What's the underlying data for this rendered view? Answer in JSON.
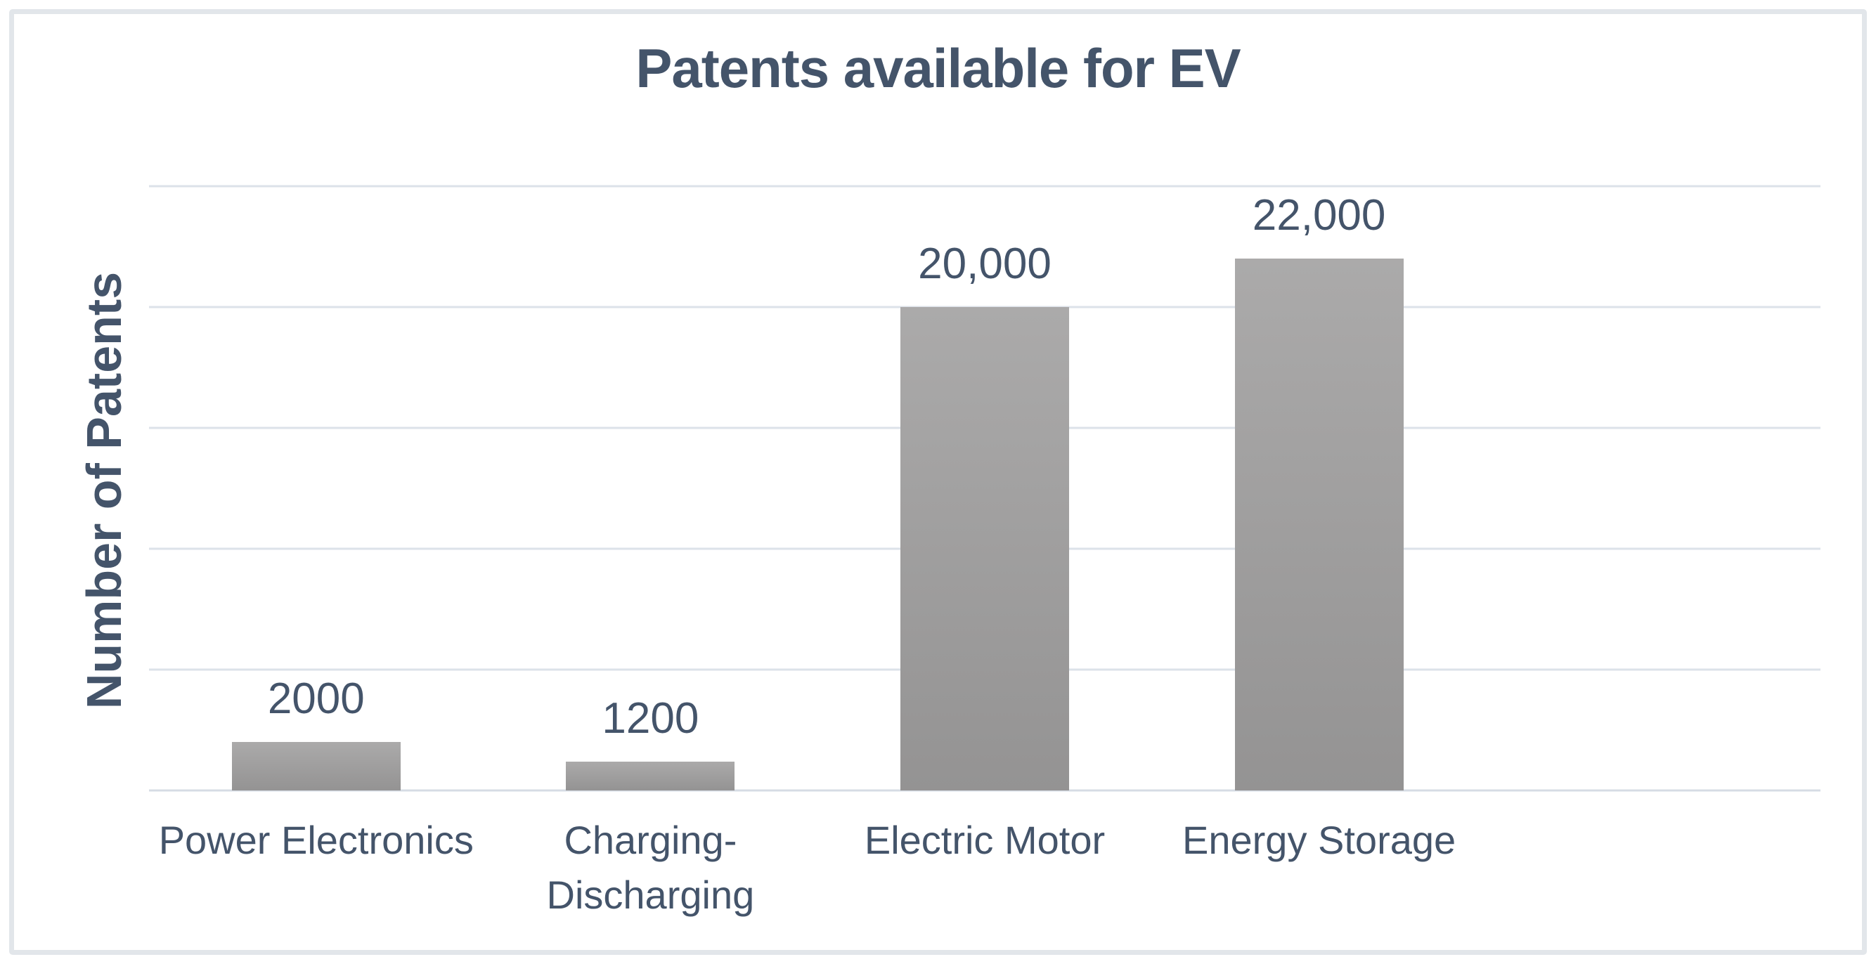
{
  "title": "Patents available for EV",
  "colors": {
    "text": "#44546a",
    "bar_top": "#abaaaa",
    "bar_bottom": "#949393",
    "gridline": "#dce2e9",
    "frame_border": "#e2e6ea",
    "background": "#ffffff"
  },
  "chart_data": {
    "type": "bar",
    "title": "Patents available for EV",
    "xlabel": "",
    "ylabel": "Number of Patents",
    "categories": [
      "Power Electronics",
      "Charging-Discharging",
      "Electric Motor",
      "Energy Storage"
    ],
    "category_label_lines": [
      [
        "Power Electronics"
      ],
      [
        "Charging-",
        "Discharging"
      ],
      [
        "Electric Motor"
      ],
      [
        "Energy Storage"
      ]
    ],
    "values": [
      2000,
      1200,
      20000,
      22000
    ],
    "value_labels": [
      "2000",
      "1200",
      "20,000",
      "22,000"
    ],
    "ylim": [
      0,
      25000
    ],
    "y_major_unit": 5000,
    "y_tick_labels_visible": false,
    "gridlines": "horizontal",
    "legend_position": "none",
    "category_slots": 5,
    "bars_occupy_slots": [
      0,
      1,
      2,
      3
    ]
  }
}
